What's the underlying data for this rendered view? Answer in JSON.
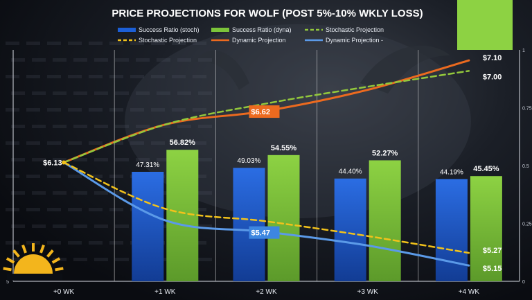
{
  "chart_data": {
    "type": "bar",
    "title": "PRICE PROJECTIONS FOR WOLF (POST 5%-10% WKLY LOSS)",
    "categories": [
      "+0 WK",
      "+1 WK",
      "+2 WK",
      "+3 WK",
      "+4 WK"
    ],
    "bar_series": [
      {
        "name": "Success Ratio (stoch)",
        "color": "#1c5fd6",
        "values": [
          null,
          47.31,
          49.03,
          44.4,
          44.19
        ],
        "labels": [
          "",
          "47.31%",
          "49.03%",
          "44.40%",
          "44.19%"
        ]
      },
      {
        "name": "Success Ratio (dyna)",
        "color": "#7cc43a",
        "values": [
          null,
          56.82,
          54.55,
          52.27,
          45.45
        ],
        "labels": [
          "",
          "56.82%",
          "54.55%",
          "52.27%",
          "45.45%"
        ]
      }
    ],
    "line_series": [
      {
        "name": "Stochastic Projection",
        "color": "#93c83c",
        "style": "dashed",
        "values": [
          6.13,
          6.49,
          6.69,
          6.85,
          7.0
        ]
      },
      {
        "name": "Stochastic Projection",
        "color": "#f2c21b",
        "style": "dashed",
        "values": [
          6.13,
          5.69,
          5.57,
          5.43,
          5.27
        ]
      },
      {
        "name": "Dynamic Projection",
        "color": "#ec6a1f",
        "style": "solid",
        "values": [
          6.13,
          6.49,
          6.62,
          6.82,
          7.1
        ]
      },
      {
        "name": "Dynamic Projection -",
        "color": "#5b9ae8",
        "style": "solid",
        "values": [
          6.13,
          5.58,
          5.47,
          5.34,
          5.15
        ]
      }
    ],
    "line_labels": [
      {
        "text": "$6.13",
        "series": 0,
        "x": 0
      },
      {
        "text": "$6.62",
        "series": 2,
        "x": 2,
        "box": "#ec6a1f"
      },
      {
        "text": "$5.47",
        "series": 3,
        "x": 2,
        "box": "#3d86e0"
      },
      {
        "text": "$7.10",
        "series": 2,
        "x": 4
      },
      {
        "text": "$7.00",
        "series": 0,
        "x": 4
      },
      {
        "text": "$5.27",
        "series": 1,
        "x": 4
      },
      {
        "text": "$5.15",
        "series": 3,
        "x": 4
      }
    ],
    "left_axis": {
      "min": 5,
      "max": 7.2,
      "ticks": [
        5
      ]
    },
    "right_axis": {
      "min": 0,
      "max": 1,
      "ticks": [
        "0",
        "0.25",
        "0.5",
        "0.75",
        "1"
      ]
    },
    "grid": true,
    "legend_position": "top"
  }
}
